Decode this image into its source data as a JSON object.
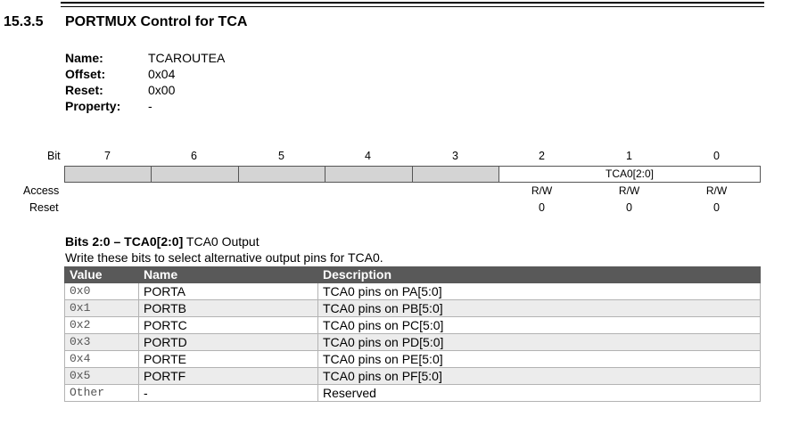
{
  "section": {
    "number": "15.3.5",
    "title": "PORTMUX Control for TCA"
  },
  "properties": [
    {
      "key": "Name:",
      "value": "TCAROUTEA"
    },
    {
      "key": "Offset:",
      "value": "0x04"
    },
    {
      "key": "Reset:",
      "value": "0x00"
    },
    {
      "key": "Property:",
      "value": "-"
    }
  ],
  "register": {
    "bit_label": "Bit",
    "access_label": "Access",
    "reset_label": "Reset",
    "bits": [
      "7",
      "6",
      "5",
      "4",
      "3",
      "2",
      "1",
      "0"
    ],
    "field_name": "TCA0[2:0]",
    "access": [
      "R/W",
      "R/W",
      "R/W"
    ],
    "reset": [
      "0",
      "0",
      "0"
    ]
  },
  "bitfield": {
    "title": "Bits 2:0 – TCA0[2:0]",
    "subtitle": "TCA0 Output",
    "description": "Write these bits to select alternative output pins for TCA0.",
    "columns": [
      "Value",
      "Name",
      "Description"
    ],
    "rows": [
      {
        "value": "0x0",
        "name": "PORTA",
        "description": "TCA0 pins on PA[5:0]"
      },
      {
        "value": "0x1",
        "name": "PORTB",
        "description": "TCA0 pins on PB[5:0]"
      },
      {
        "value": "0x2",
        "name": "PORTC",
        "description": "TCA0 pins on PC[5:0]"
      },
      {
        "value": "0x3",
        "name": "PORTD",
        "description": "TCA0 pins on PD[5:0]"
      },
      {
        "value": "0x4",
        "name": "PORTE",
        "description": "TCA0 pins on PE[5:0]"
      },
      {
        "value": "0x5",
        "name": "PORTF",
        "description": "TCA0 pins on PF[5:0]"
      },
      {
        "value": "Other",
        "name": "-",
        "description": "Reserved"
      }
    ]
  }
}
